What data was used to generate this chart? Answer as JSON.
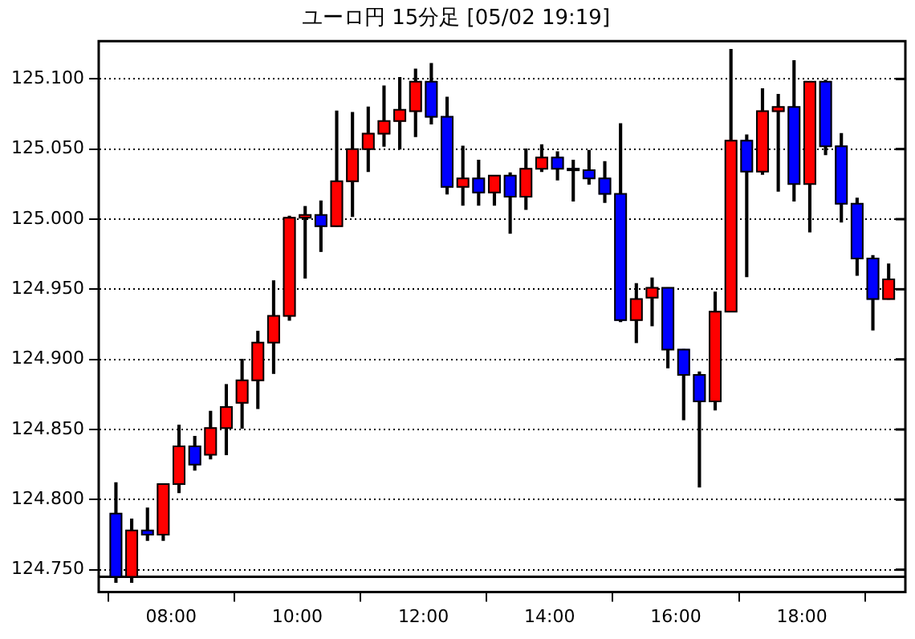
{
  "chart_data": {
    "type": "candlestick",
    "title": "ユーロ円 15分足 [05/02 19:19]",
    "x": [
      7.125,
      7.375,
      7.625,
      7.875,
      8.125,
      8.375,
      8.625,
      8.875,
      9.125,
      9.375,
      9.625,
      9.875,
      10.125,
      10.375,
      10.625,
      10.875,
      11.125,
      11.375,
      11.625,
      11.875,
      12.125,
      12.375,
      12.625,
      12.875,
      13.125,
      13.375,
      13.625,
      13.875,
      14.125,
      14.375,
      14.625,
      14.875,
      15.125,
      15.375,
      15.625,
      15.875,
      16.125,
      16.375,
      16.625,
      16.875,
      17.125,
      17.375,
      17.625,
      17.875,
      18.125,
      18.375,
      18.625,
      18.875,
      19.125,
      19.375
    ],
    "ohlc": [
      [
        124.79,
        124.812,
        124.741,
        124.745
      ],
      [
        124.745,
        124.786,
        124.741,
        124.778
      ],
      [
        124.778,
        124.794,
        124.771,
        124.775
      ],
      [
        124.775,
        124.811,
        124.771,
        124.811
      ],
      [
        124.811,
        124.853,
        124.805,
        124.838
      ],
      [
        124.838,
        124.845,
        124.821,
        124.825
      ],
      [
        124.832,
        124.863,
        124.829,
        124.851
      ],
      [
        124.851,
        124.882,
        124.832,
        124.866
      ],
      [
        124.869,
        124.9,
        124.851,
        124.885
      ],
      [
        124.885,
        124.92,
        124.865,
        124.912
      ],
      [
        124.912,
        124.956,
        124.89,
        124.931
      ],
      [
        124.931,
        125.002,
        124.928,
        125.001
      ],
      [
        125.001,
        125.009,
        124.958,
        125.003
      ],
      [
        125.003,
        125.013,
        124.977,
        124.995
      ],
      [
        124.995,
        125.077,
        124.995,
        125.027
      ],
      [
        125.027,
        125.076,
        125.002,
        125.05
      ],
      [
        125.05,
        125.08,
        125.034,
        125.061
      ],
      [
        125.061,
        125.095,
        125.052,
        125.07
      ],
      [
        125.07,
        125.101,
        125.05,
        125.078
      ],
      [
        125.077,
        125.107,
        125.059,
        125.098
      ],
      [
        125.098,
        125.111,
        125.068,
        125.073
      ],
      [
        125.073,
        125.087,
        125.018,
        125.023
      ],
      [
        125.023,
        125.052,
        125.01,
        125.029
      ],
      [
        125.029,
        125.042,
        125.01,
        125.019
      ],
      [
        125.019,
        125.031,
        125.01,
        125.031
      ],
      [
        125.031,
        125.033,
        124.99,
        125.016
      ],
      [
        125.016,
        125.05,
        125.007,
        125.036
      ],
      [
        125.036,
        125.053,
        125.034,
        125.044
      ],
      [
        125.044,
        125.048,
        125.028,
        125.036
      ],
      [
        125.036,
        125.042,
        125.013,
        125.035
      ],
      [
        125.035,
        125.049,
        125.025,
        125.029
      ],
      [
        125.029,
        125.041,
        125.012,
        125.018
      ],
      [
        125.018,
        125.068,
        124.927,
        124.928
      ],
      [
        124.928,
        124.954,
        124.912,
        124.943
      ],
      [
        124.944,
        124.958,
        124.924,
        124.951
      ],
      [
        124.951,
        124.951,
        124.894,
        124.907
      ],
      [
        124.907,
        124.907,
        124.857,
        124.889
      ],
      [
        124.889,
        124.891,
        124.809,
        124.87
      ],
      [
        124.87,
        124.948,
        124.864,
        124.934
      ],
      [
        124.934,
        125.121,
        124.934,
        125.056
      ],
      [
        125.056,
        125.06,
        124.959,
        125.034
      ],
      [
        125.034,
        125.093,
        125.032,
        125.077
      ],
      [
        125.077,
        125.089,
        125.02,
        125.08
      ],
      [
        125.08,
        125.113,
        125.013,
        125.025
      ],
      [
        125.025,
        125.098,
        124.991,
        125.098
      ],
      [
        125.098,
        125.099,
        125.046,
        125.052
      ],
      [
        125.052,
        125.061,
        124.998,
        125.011
      ],
      [
        125.011,
        125.015,
        124.96,
        124.972
      ],
      [
        124.972,
        124.974,
        124.921,
        124.943
      ],
      [
        124.943,
        124.968,
        124.943,
        124.957
      ]
    ],
    "colors": [
      "#0000ff",
      "#ff0000",
      "#0000ff",
      "#ff0000",
      "#ff0000",
      "#0000ff",
      "#ff0000",
      "#ff0000",
      "#ff0000",
      "#ff0000",
      "#ff0000",
      "#ff0000",
      "#ff0000",
      "#0000ff",
      "#ff0000",
      "#ff0000",
      "#ff0000",
      "#ff0000",
      "#ff0000",
      "#ff0000",
      "#0000ff",
      "#0000ff",
      "#ff0000",
      "#0000ff",
      "#ff0000",
      "#0000ff",
      "#ff0000",
      "#ff0000",
      "#0000ff",
      "#0000ff",
      "#0000ff",
      "#0000ff",
      "#0000ff",
      "#ff0000",
      "#ff0000",
      "#0000ff",
      "#0000ff",
      "#0000ff",
      "#ff0000",
      "#ff0000",
      "#0000ff",
      "#ff0000",
      "#ff0000",
      "#0000ff",
      "#ff0000",
      "#0000ff",
      "#0000ff",
      "#0000ff",
      "#0000ff",
      "#ff0000"
    ],
    "xlim": [
      6.852,
      19.64
    ],
    "xticks": [
      {
        "value": 8,
        "label": "08:00"
      },
      {
        "value": 10,
        "label": "10:00"
      },
      {
        "value": 12,
        "label": "12:00"
      },
      {
        "value": 14,
        "label": "14:00"
      },
      {
        "value": 16,
        "label": "16:00"
      },
      {
        "value": 18,
        "label": "18:00"
      }
    ],
    "ylim": [
      124.734,
      125.127
    ],
    "yticks": [
      {
        "value": 124.75,
        "label": "124.750"
      },
      {
        "value": 124.8,
        "label": "124.800"
      },
      {
        "value": 124.85,
        "label": "124.850"
      },
      {
        "value": 124.9,
        "label": "124.900"
      },
      {
        "value": 124.95,
        "label": "124.950"
      },
      {
        "value": 125.0,
        "label": "125.000"
      },
      {
        "value": 125.05,
        "label": "125.050"
      },
      {
        "value": 125.1,
        "label": "125.100"
      }
    ],
    "ref_lines": [
      {
        "axis": "y",
        "value": 124.745,
        "color": "#000000",
        "line_style": "solid"
      }
    ],
    "grid": "y",
    "legend": false
  }
}
